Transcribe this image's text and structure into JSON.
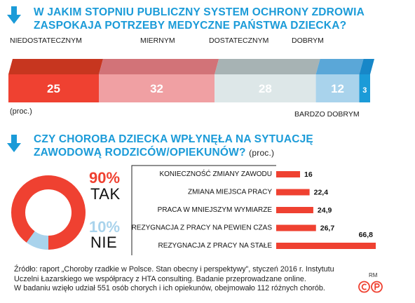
{
  "section1": {
    "title": "W JAKIM STOPNIU PUBLICZNY SYSTEM OCHRONY ZDROWIA ZASPOKAJA POTRZEBY MEDYCZNE PAŃSTWA DZIECKA?",
    "unit_label": "(proc.)"
  },
  "section2": {
    "title_line1": "CZY CHOROBA DZIECKA WPŁYNĘŁA NA SYTUACJĘ",
    "title_line2": "ZAWODOWĄ RODZICÓW/OPIEKUNÓW?",
    "unit_label": "(proc.)"
  },
  "source": {
    "line1": "Źródło: raport „Choroby rzadkie w Polsce. Stan obecny i perspektywy”, styczeń 2016 r. Instytutu",
    "line2": "Uczelni Łazarskiego we współpracy z HTA consulting. Badanie przeprowadzane online.",
    "line3": "W badaniu wzięło udział 551 osób chorych i ich opiekunów, obejmowało 112 różnych chorób.",
    "mark": "RM"
  },
  "colors": {
    "accent_blue": "#1b9bd8",
    "red": "#ef4131",
    "dark_red": "#c7361f",
    "pink": "#f0a0a3",
    "pink_dark": "#d27378",
    "grey_light": "#dde7e8",
    "grey_dark": "#a7b3b4",
    "light_blue": "#a9d3ec",
    "light_blue_dark": "#5aa7d8",
    "blue_dark": "#1787c8"
  },
  "chart_data": [
    {
      "type": "bar",
      "stacked": true,
      "orientation": "horizontal",
      "title": "W JAKIM STOPNIU PUBLICZNY SYSTEM OCHRONY ZDROWIA ZASPOKAJA POTRZEBY MEDYCZNE PAŃSTWA DZIECKA?",
      "unit": "(proc.)",
      "categories": [
        "NIEDOSTATECZNYM",
        "MIERNYM",
        "DOSTATECZNYM",
        "DOBRYM",
        "BARDZO DOBRYM"
      ],
      "values": [
        25,
        32,
        28,
        12,
        3
      ],
      "colors": [
        "#ef4131",
        "#f0a0a3",
        "#dde7e8",
        "#a9d3ec",
        "#1b9bd8"
      ],
      "top_colors": [
        "#c7361f",
        "#d27378",
        "#a7b3b4",
        "#5aa7d8",
        "#1787c8"
      ]
    },
    {
      "type": "pie",
      "donut": true,
      "slices": [
        {
          "label": "TAK",
          "value": 90,
          "value_label": "90%",
          "color": "#ef4131"
        },
        {
          "label": "NIE",
          "value": 10,
          "value_label": "10%",
          "color": "#a9d3ec"
        }
      ]
    },
    {
      "type": "bar",
      "orientation": "horizontal",
      "categories": [
        "KONIECZNOŚĆ ZMIANY ZAWODU",
        "ZMIANA MIEJSCA PRACY",
        "PRACA W MNIEJSZYM WYMIARZE",
        "REZYGNACJA Z PRACY NA PEWIEN CZAS",
        "REZYGNACJA Z PRACY NA STAŁE"
      ],
      "values": [
        16,
        22.4,
        24.9,
        26.7,
        66.8
      ],
      "value_labels": [
        "16",
        "22,4",
        "24,9",
        "26,7",
        "66,8"
      ],
      "color": "#ef4131"
    }
  ]
}
